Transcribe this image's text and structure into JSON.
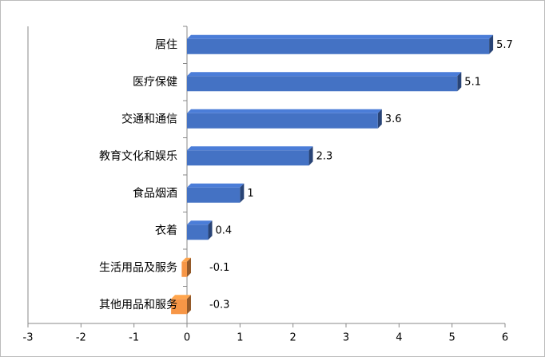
{
  "chart_data": {
    "type": "bar",
    "orientation": "horizontal",
    "categories": [
      "居住",
      "医疗保健",
      "交通和通信",
      "教育文化和娱乐",
      "食品烟酒",
      "衣着",
      "生活用品及服务",
      "其他用品和服务"
    ],
    "values": [
      5.7,
      5.1,
      3.6,
      2.3,
      1,
      0.4,
      -0.1,
      -0.3
    ],
    "colors": [
      "#4472c4",
      "#4472c4",
      "#4472c4",
      "#4472c4",
      "#4472c4",
      "#4472c4",
      "#f79646",
      "#f79646"
    ],
    "xlim": [
      -3,
      6
    ],
    "xticks": [
      -3,
      -2,
      -1,
      0,
      1,
      2,
      3,
      4,
      5,
      6
    ],
    "grid": false
  }
}
